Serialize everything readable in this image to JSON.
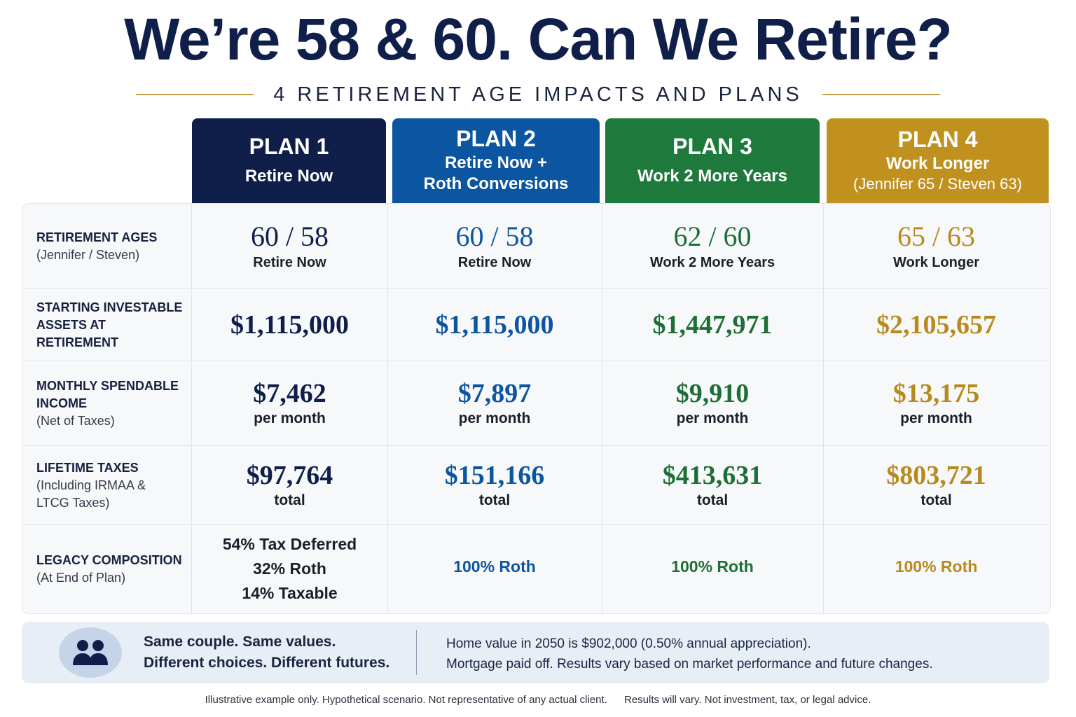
{
  "title": "We’re 58 & 60. Can We Retire?",
  "subtitle": "4 RETIREMENT AGE IMPACTS AND PLANS",
  "colors": {
    "plan1": "#0f1f4a",
    "plan2": "#0c55a0",
    "plan3": "#1e7a3c",
    "plan4": "#c0911f"
  },
  "plans": [
    {
      "name": "PLAN 1",
      "sub": "Retire Now",
      "sub2": ""
    },
    {
      "name": "PLAN 2",
      "sub": "Retire Now +",
      "sub2": "Roth Conversions"
    },
    {
      "name": "PLAN 3",
      "sub": "Work 2 More Years",
      "sub2": ""
    },
    {
      "name": "PLAN 4",
      "sub": "Work Longer",
      "sub2": "(Jennifer 65 / Steven 63)"
    }
  ],
  "rows": {
    "ages": {
      "label": "RETIREMENT AGES",
      "label_sub": "(Jennifer / Steven)",
      "values": [
        {
          "value": "60 / 58",
          "note": "Retire Now"
        },
        {
          "value": "60 / 58",
          "note": "Retire Now"
        },
        {
          "value": "62 / 60",
          "note": "Work 2 More Years"
        },
        {
          "value": "65 / 63",
          "note": "Work Longer"
        }
      ]
    },
    "assets": {
      "label_line1": "STARTING INVESTABLE",
      "label_line2": "ASSETS AT RETIREMENT",
      "values": [
        "$1,115,000",
        "$1,115,000",
        "$1,447,971",
        "$2,105,657"
      ]
    },
    "income": {
      "label_line1": "MONTHLY SPENDABLE",
      "label_line2": "INCOME",
      "label_sub": "(Net of Taxes)",
      "values": [
        "$7,462",
        "$7,897",
        "$9,910",
        "$13,175"
      ],
      "unit": "per month"
    },
    "taxes": {
      "label": "LIFETIME TAXES",
      "label_sub1": "(Including IRMAA &",
      "label_sub2": "LTCG Taxes)",
      "values": [
        "$97,764",
        "$151,166",
        "$413,631",
        "$803,721"
      ],
      "unit": "total"
    },
    "legacy": {
      "label": "LEGACY COMPOSITION",
      "label_sub": "(At End of Plan)",
      "plan1_lines": [
        "54% Tax Deferred",
        "32% Roth",
        "14% Taxable"
      ],
      "plan2": "100% Roth",
      "plan3": "100% Roth",
      "plan4": "100% Roth"
    }
  },
  "footer": {
    "icon": "people-icon",
    "left_line1": "Same couple. Same values.",
    "left_line2": "Different choices. Different futures.",
    "right_line1": "Home value in 2050 is $902,000 (0.50% annual appreciation).",
    "right_line2": "Mortgage paid off. Results vary based on market performance and future changes."
  },
  "disclaimer": {
    "part1": "Illustrative example only. Hypothetical scenario. Not representative of any actual client.",
    "part2": "Results will vary. Not investment, tax, or legal advice."
  }
}
